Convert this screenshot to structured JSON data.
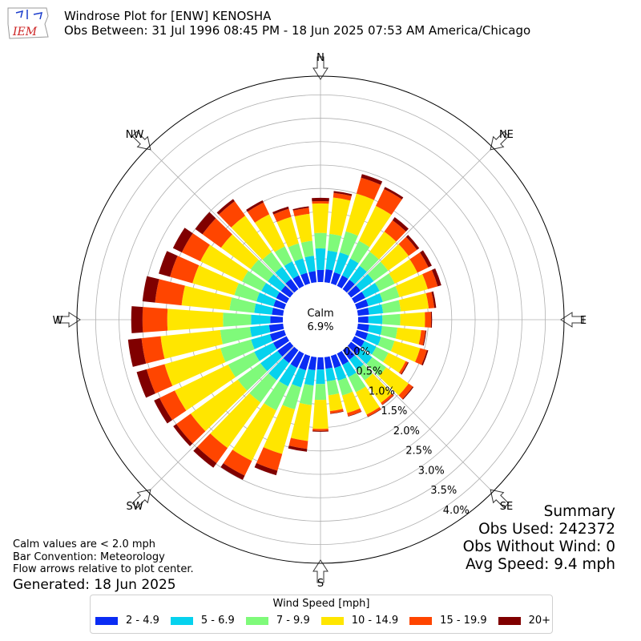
{
  "header": {
    "title": "Windrose Plot for [ENW] KENOSHA",
    "subtitle": "Obs Between: 31 Jul 1996 08:45 PM - 18 Jun 2025 07:53 AM America/Chicago",
    "logo_text": "IEM"
  },
  "notes": {
    "line1": "Calm values are < 2.0 mph",
    "line2": "Bar Convention: Meteorology",
    "line3": "Flow arrows relative to plot center.",
    "generated": "Generated: 18 Jun 2025"
  },
  "summary": {
    "title": "Summary",
    "obs_used": "Obs Used: 242372",
    "obs_without_wind": "Obs Without Wind: 0",
    "avg_speed": "Avg Speed: 9.4 mph"
  },
  "legend": {
    "title": "Wind Speed [mph]",
    "items": [
      {
        "label": "2 - 4.9",
        "color": "#0a2cf4"
      },
      {
        "label": "5 - 6.9",
        "color": "#06d2ee"
      },
      {
        "label": "7 - 9.9",
        "color": "#7ffa7a"
      },
      {
        "label": "10 - 14.9",
        "color": "#ffe600"
      },
      {
        "label": "15 - 19.9",
        "color": "#ff4500"
      },
      {
        "label": "20+",
        "color": "#800000"
      }
    ]
  },
  "chart_data": {
    "type": "windrose",
    "title": "Windrose Plot for [ENW] KENOSHA",
    "calm_label": "Calm",
    "calm_value": "6.9%",
    "compass_labels": [
      "N",
      "NE",
      "E",
      "SE",
      "S",
      "SW",
      "W",
      "NW"
    ],
    "radial_ticks": [
      0,
      0.5,
      1.0,
      1.5,
      2.0,
      2.5,
      3.0,
      3.5,
      4.0
    ],
    "radial_tick_labels": [
      "0.0%",
      "0.5%",
      "1.0%",
      "1.5%",
      "2.0%",
      "2.5%",
      "3.0%",
      "3.5%",
      "4.0%"
    ],
    "rlim": [
      0,
      4.4
    ],
    "bar_convention": "meteorology",
    "direction_step_deg": 10,
    "speed_bins": [
      "2 - 4.9",
      "5 - 6.9",
      "7 - 9.9",
      "10 - 14.9",
      "15 - 19.9",
      "20+"
    ],
    "directions_deg": [
      0,
      10,
      20,
      30,
      40,
      50,
      60,
      70,
      80,
      90,
      100,
      110,
      120,
      130,
      140,
      150,
      160,
      170,
      180,
      190,
      200,
      210,
      220,
      230,
      240,
      250,
      260,
      270,
      280,
      290,
      300,
      310,
      320,
      330,
      340,
      350
    ],
    "cumulative": [
      [
        0.26,
        0.72,
        1.05,
        1.68,
        1.73,
        1.8
      ],
      [
        0.28,
        0.68,
        1.04,
        1.82,
        1.92,
        1.96
      ],
      [
        0.25,
        0.69,
        1.16,
        2.0,
        2.35,
        2.43
      ],
      [
        0.25,
        0.65,
        1.07,
        1.9,
        2.3,
        2.35
      ],
      [
        0.25,
        0.62,
        0.99,
        1.52,
        1.82,
        1.9
      ],
      [
        0.25,
        0.6,
        0.98,
        1.52,
        1.74,
        1.8
      ],
      [
        0.26,
        0.6,
        0.96,
        1.5,
        1.76,
        1.84
      ],
      [
        0.26,
        0.58,
        0.95,
        1.58,
        1.8,
        1.88
      ],
      [
        0.24,
        0.54,
        0.92,
        1.52,
        1.64,
        1.68
      ],
      [
        0.22,
        0.52,
        0.9,
        1.43,
        1.56,
        1.58
      ],
      [
        0.24,
        0.52,
        0.85,
        1.36,
        1.45,
        1.47
      ],
      [
        0.25,
        0.54,
        0.84,
        1.41,
        1.56,
        1.59
      ],
      [
        0.24,
        0.52,
        0.81,
        1.22,
        1.27,
        1.29
      ],
      [
        0.26,
        0.56,
        0.93,
        1.52,
        1.63,
        1.65
      ],
      [
        0.25,
        0.52,
        0.8,
        1.39,
        1.44,
        1.45
      ],
      [
        0.27,
        0.56,
        0.92,
        1.45,
        1.5,
        1.51
      ],
      [
        0.27,
        0.55,
        0.88,
        1.27,
        1.34,
        1.35
      ],
      [
        0.25,
        0.52,
        0.82,
        1.16,
        1.21,
        1.22
      ],
      [
        0.26,
        0.57,
        0.91,
        1.53,
        1.57,
        1.59
      ],
      [
        0.28,
        0.61,
        1.03,
        1.8,
        1.97,
        2.03
      ],
      [
        0.32,
        0.7,
        1.19,
        2.18,
        2.55,
        2.65
      ],
      [
        0.34,
        0.78,
        1.35,
        2.55,
        2.9,
        3.0
      ],
      [
        0.34,
        0.79,
        1.38,
        2.58,
        2.98,
        3.1
      ],
      [
        0.33,
        0.78,
        1.38,
        2.62,
        3.0,
        3.08
      ],
      [
        0.32,
        0.77,
        1.39,
        2.66,
        3.02,
        3.15
      ],
      [
        0.32,
        0.74,
        1.42,
        2.66,
        3.06,
        3.28
      ],
      [
        0.3,
        0.71,
        1.35,
        2.63,
        3.04,
        3.33
      ],
      [
        0.27,
        0.68,
        1.28,
        2.47,
        3.0,
        3.24
      ],
      [
        0.24,
        0.62,
        1.15,
        2.18,
        2.75,
        3.02
      ],
      [
        0.24,
        0.62,
        1.11,
        2.04,
        2.54,
        2.79
      ],
      [
        0.25,
        0.6,
        1.06,
        2.05,
        2.49,
        2.7
      ],
      [
        0.24,
        0.59,
        1.04,
        1.82,
        2.31,
        2.5
      ],
      [
        0.27,
        0.59,
        0.98,
        1.94,
        2.32,
        2.38
      ],
      [
        0.25,
        0.58,
        0.94,
        1.7,
        1.98,
        2.03
      ],
      [
        0.24,
        0.56,
        0.89,
        1.48,
        1.66,
        1.71
      ],
      [
        0.24,
        0.57,
        0.89,
        1.47,
        1.6,
        1.63
      ]
    ]
  }
}
